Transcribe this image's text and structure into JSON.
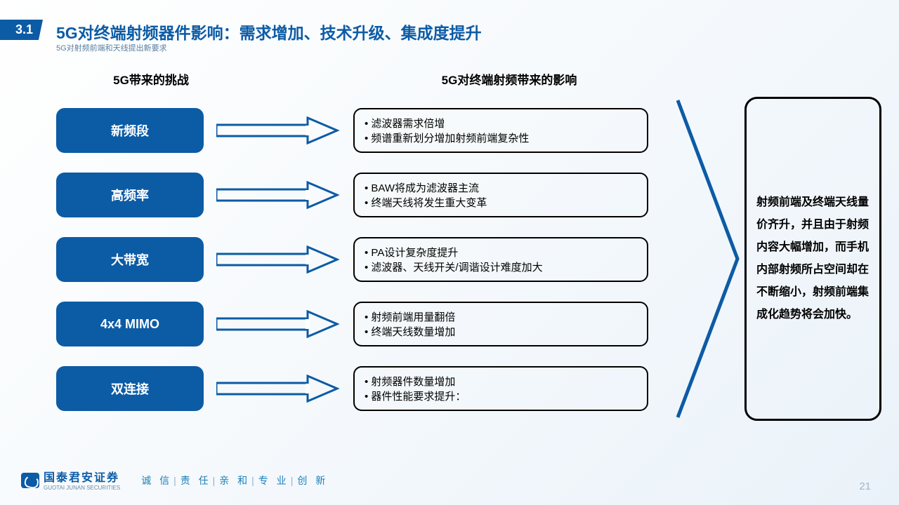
{
  "section_number": "3.1",
  "title": "5G对终端射频器件影响：需求增加、技术升级、集成度提升",
  "subtitle": "5G对射频前端和天线提出新要求",
  "columns": {
    "left_header": "5G带来的挑战",
    "mid_header": "5G对终端射频带来的影响"
  },
  "rows": [
    {
      "challenge": "新频段",
      "impacts": [
        "滤波器需求倍增",
        "频谱重新划分增加射频前端复杂性"
      ]
    },
    {
      "challenge": "高频率",
      "impacts": [
        "BAW将成为滤波器主流",
        "终端天线将发生重大变革"
      ]
    },
    {
      "challenge": "大带宽",
      "impacts": [
        "PA设计复杂度提升",
        "滤波器、天线开关/调谐设计难度加大"
      ]
    },
    {
      "challenge": "4x4 MIMO",
      "impacts": [
        "射频前端用量翻倍",
        "终端天线数量增加"
      ]
    },
    {
      "challenge": "双连接",
      "impacts": [
        "射频器件数量增加",
        "器件性能要求提升："
      ]
    }
  ],
  "arrow_color": "#0c5ba5",
  "left_box_color": "#0c5ba5",
  "conclusion": "射频前端及终端天线量价齐升，并且由于射频内容大幅增加，而手机内部射频所占空间却在不断缩小，射频前端集成化趋势将会加快。",
  "footer": {
    "logo_text": "国泰君安证券",
    "logo_sub": "GUOTAI JUNAN SECURITIES",
    "motto_parts": [
      "诚 信",
      "责 任",
      "亲 和",
      "专 业",
      "创 新"
    ]
  },
  "page_number": "21"
}
